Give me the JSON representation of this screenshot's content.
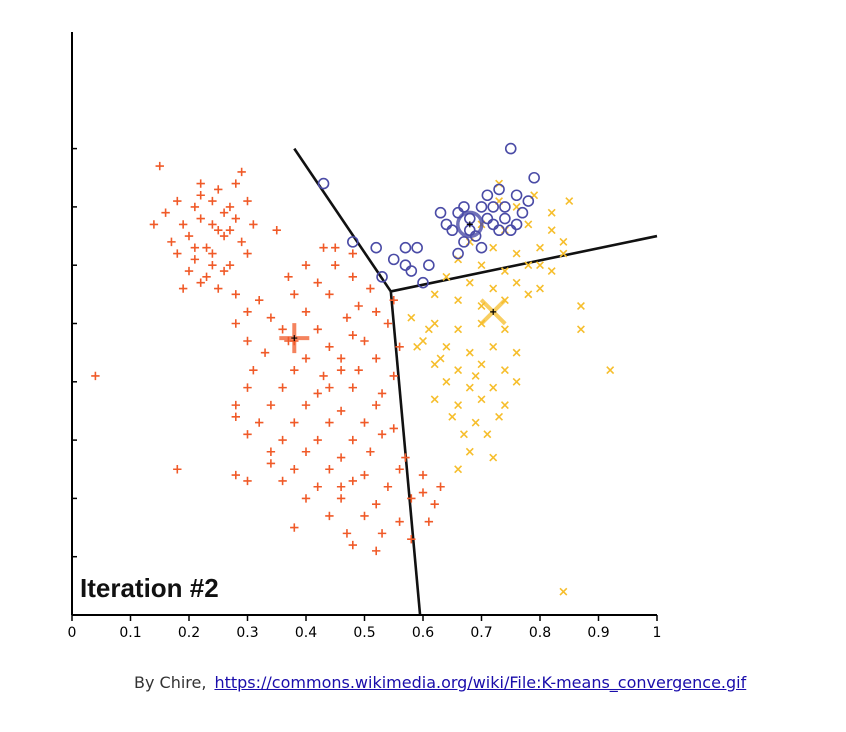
{
  "chart_data": {
    "type": "scatter",
    "title": "",
    "xlabel": "",
    "ylabel": "",
    "annotation": "Iteration #2",
    "xlim": [
      0,
      1
    ],
    "ylim": [
      0,
      1
    ],
    "xticks": [
      {
        "v": 0,
        "label": "0"
      },
      {
        "v": 0.1,
        "label": "0.1"
      },
      {
        "v": 0.2,
        "label": "0.2"
      },
      {
        "v": 0.3,
        "label": "0.3"
      },
      {
        "v": 0.4,
        "label": "0.4"
      },
      {
        "v": 0.5,
        "label": "0.5"
      },
      {
        "v": 0.6,
        "label": "0.6"
      },
      {
        "v": 0.7,
        "label": "0.7"
      },
      {
        "v": 0.8,
        "label": "0.8"
      },
      {
        "v": 0.9,
        "label": "0.9"
      },
      {
        "v": 1,
        "label": "1"
      }
    ],
    "yticks": [
      0.1,
      0.2,
      0.3,
      0.4,
      0.5,
      0.6,
      0.7,
      0.8
    ],
    "grid": false,
    "centroids": [
      {
        "cluster": "red",
        "x": 0.38,
        "y": 0.475
      },
      {
        "cluster": "yellow",
        "x": 0.72,
        "y": 0.52
      },
      {
        "cluster": "blue",
        "x": 0.68,
        "y": 0.67
      }
    ],
    "boundaries": [
      [
        [
          0.38,
          0.8
        ],
        [
          0.545,
          0.555
        ]
      ],
      [
        [
          0.545,
          0.555
        ],
        [
          1.0,
          0.65
        ]
      ],
      [
        [
          0.545,
          0.555
        ],
        [
          0.595,
          0.0
        ]
      ]
    ],
    "series": [
      {
        "marker": "plus",
        "color": "#f05a28",
        "points": [
          [
            0.15,
            0.77
          ],
          [
            0.22,
            0.74
          ],
          [
            0.25,
            0.73
          ],
          [
            0.28,
            0.74
          ],
          [
            0.29,
            0.76
          ],
          [
            0.18,
            0.71
          ],
          [
            0.21,
            0.7
          ],
          [
            0.24,
            0.71
          ],
          [
            0.27,
            0.7
          ],
          [
            0.3,
            0.71
          ],
          [
            0.14,
            0.67
          ],
          [
            0.19,
            0.67
          ],
          [
            0.22,
            0.68
          ],
          [
            0.25,
            0.66
          ],
          [
            0.28,
            0.68
          ],
          [
            0.31,
            0.67
          ],
          [
            0.17,
            0.64
          ],
          [
            0.2,
            0.65
          ],
          [
            0.23,
            0.63
          ],
          [
            0.26,
            0.65
          ],
          [
            0.29,
            0.64
          ],
          [
            0.18,
            0.62
          ],
          [
            0.21,
            0.61
          ],
          [
            0.24,
            0.62
          ],
          [
            0.27,
            0.6
          ],
          [
            0.3,
            0.62
          ],
          [
            0.2,
            0.59
          ],
          [
            0.23,
            0.58
          ],
          [
            0.26,
            0.59
          ],
          [
            0.19,
            0.56
          ],
          [
            0.22,
            0.57
          ],
          [
            0.25,
            0.56
          ],
          [
            0.28,
            0.55
          ],
          [
            0.22,
            0.72
          ],
          [
            0.26,
            0.69
          ],
          [
            0.16,
            0.69
          ],
          [
            0.24,
            0.67
          ],
          [
            0.21,
            0.63
          ],
          [
            0.27,
            0.66
          ],
          [
            0.24,
            0.6
          ],
          [
            0.35,
            0.66
          ],
          [
            0.43,
            0.63
          ],
          [
            0.45,
            0.63
          ],
          [
            0.48,
            0.62
          ],
          [
            0.4,
            0.6
          ],
          [
            0.45,
            0.6
          ],
          [
            0.37,
            0.58
          ],
          [
            0.42,
            0.57
          ],
          [
            0.48,
            0.58
          ],
          [
            0.51,
            0.56
          ],
          [
            0.32,
            0.54
          ],
          [
            0.38,
            0.55
          ],
          [
            0.44,
            0.55
          ],
          [
            0.49,
            0.53
          ],
          [
            0.55,
            0.54
          ],
          [
            0.3,
            0.52
          ],
          [
            0.34,
            0.51
          ],
          [
            0.4,
            0.52
          ],
          [
            0.47,
            0.51
          ],
          [
            0.52,
            0.52
          ],
          [
            0.28,
            0.5
          ],
          [
            0.36,
            0.49
          ],
          [
            0.42,
            0.49
          ],
          [
            0.48,
            0.48
          ],
          [
            0.54,
            0.5
          ],
          [
            0.3,
            0.47
          ],
          [
            0.37,
            0.47
          ],
          [
            0.44,
            0.46
          ],
          [
            0.5,
            0.47
          ],
          [
            0.56,
            0.46
          ],
          [
            0.33,
            0.45
          ],
          [
            0.4,
            0.44
          ],
          [
            0.46,
            0.44
          ],
          [
            0.52,
            0.44
          ],
          [
            0.31,
            0.42
          ],
          [
            0.38,
            0.42
          ],
          [
            0.43,
            0.41
          ],
          [
            0.49,
            0.42
          ],
          [
            0.55,
            0.41
          ],
          [
            0.3,
            0.39
          ],
          [
            0.36,
            0.39
          ],
          [
            0.42,
            0.38
          ],
          [
            0.48,
            0.39
          ],
          [
            0.53,
            0.38
          ],
          [
            0.28,
            0.36
          ],
          [
            0.34,
            0.36
          ],
          [
            0.4,
            0.36
          ],
          [
            0.46,
            0.35
          ],
          [
            0.52,
            0.36
          ],
          [
            0.32,
            0.33
          ],
          [
            0.38,
            0.33
          ],
          [
            0.44,
            0.33
          ],
          [
            0.5,
            0.33
          ],
          [
            0.55,
            0.32
          ],
          [
            0.3,
            0.31
          ],
          [
            0.36,
            0.3
          ],
          [
            0.42,
            0.3
          ],
          [
            0.48,
            0.3
          ],
          [
            0.53,
            0.31
          ],
          [
            0.34,
            0.28
          ],
          [
            0.4,
            0.28
          ],
          [
            0.46,
            0.27
          ],
          [
            0.51,
            0.28
          ],
          [
            0.57,
            0.27
          ],
          [
            0.38,
            0.25
          ],
          [
            0.44,
            0.25
          ],
          [
            0.5,
            0.24
          ],
          [
            0.56,
            0.25
          ],
          [
            0.3,
            0.23
          ],
          [
            0.36,
            0.23
          ],
          [
            0.42,
            0.22
          ],
          [
            0.48,
            0.23
          ],
          [
            0.54,
            0.22
          ],
          [
            0.6,
            0.24
          ],
          [
            0.4,
            0.2
          ],
          [
            0.46,
            0.2
          ],
          [
            0.52,
            0.19
          ],
          [
            0.58,
            0.2
          ],
          [
            0.62,
            0.19
          ],
          [
            0.44,
            0.17
          ],
          [
            0.5,
            0.17
          ],
          [
            0.56,
            0.16
          ],
          [
            0.61,
            0.16
          ],
          [
            0.38,
            0.15
          ],
          [
            0.47,
            0.14
          ],
          [
            0.53,
            0.14
          ],
          [
            0.58,
            0.13
          ],
          [
            0.48,
            0.12
          ],
          [
            0.52,
            0.11
          ],
          [
            0.04,
            0.41
          ],
          [
            0.18,
            0.25
          ],
          [
            0.28,
            0.24
          ],
          [
            0.6,
            0.21
          ],
          [
            0.63,
            0.22
          ],
          [
            0.34,
            0.26
          ],
          [
            0.46,
            0.22
          ],
          [
            0.28,
            0.34
          ],
          [
            0.44,
            0.39
          ],
          [
            0.38,
            0.47
          ],
          [
            0.46,
            0.42
          ]
        ]
      },
      {
        "marker": "cross",
        "color": "#f6be2c",
        "points": [
          [
            0.73,
            0.71
          ],
          [
            0.76,
            0.7
          ],
          [
            0.79,
            0.72
          ],
          [
            0.85,
            0.71
          ],
          [
            0.82,
            0.69
          ],
          [
            0.7,
            0.67
          ],
          [
            0.74,
            0.66
          ],
          [
            0.78,
            0.67
          ],
          [
            0.82,
            0.66
          ],
          [
            0.84,
            0.64
          ],
          [
            0.68,
            0.64
          ],
          [
            0.72,
            0.63
          ],
          [
            0.76,
            0.62
          ],
          [
            0.8,
            0.63
          ],
          [
            0.84,
            0.62
          ],
          [
            0.66,
            0.61
          ],
          [
            0.7,
            0.6
          ],
          [
            0.74,
            0.59
          ],
          [
            0.78,
            0.6
          ],
          [
            0.82,
            0.59
          ],
          [
            0.64,
            0.58
          ],
          [
            0.68,
            0.57
          ],
          [
            0.72,
            0.56
          ],
          [
            0.76,
            0.57
          ],
          [
            0.8,
            0.56
          ],
          [
            0.62,
            0.55
          ],
          [
            0.66,
            0.54
          ],
          [
            0.7,
            0.53
          ],
          [
            0.74,
            0.54
          ],
          [
            0.78,
            0.55
          ],
          [
            0.58,
            0.51
          ],
          [
            0.62,
            0.5
          ],
          [
            0.66,
            0.49
          ],
          [
            0.7,
            0.5
          ],
          [
            0.74,
            0.49
          ],
          [
            0.6,
            0.47
          ],
          [
            0.64,
            0.46
          ],
          [
            0.68,
            0.45
          ],
          [
            0.72,
            0.46
          ],
          [
            0.76,
            0.45
          ],
          [
            0.62,
            0.43
          ],
          [
            0.66,
            0.42
          ],
          [
            0.7,
            0.43
          ],
          [
            0.74,
            0.42
          ],
          [
            0.64,
            0.4
          ],
          [
            0.68,
            0.39
          ],
          [
            0.72,
            0.39
          ],
          [
            0.76,
            0.4
          ],
          [
            0.62,
            0.37
          ],
          [
            0.66,
            0.36
          ],
          [
            0.7,
            0.37
          ],
          [
            0.74,
            0.36
          ],
          [
            0.65,
            0.34
          ],
          [
            0.69,
            0.33
          ],
          [
            0.73,
            0.34
          ],
          [
            0.67,
            0.31
          ],
          [
            0.71,
            0.31
          ],
          [
            0.68,
            0.28
          ],
          [
            0.72,
            0.27
          ],
          [
            0.66,
            0.25
          ],
          [
            0.61,
            0.49
          ],
          [
            0.63,
            0.44
          ],
          [
            0.59,
            0.46
          ],
          [
            0.69,
            0.41
          ],
          [
            0.87,
            0.53
          ],
          [
            0.87,
            0.49
          ],
          [
            0.92,
            0.42
          ],
          [
            0.84,
            0.04
          ],
          [
            0.73,
            0.74
          ],
          [
            0.8,
            0.6
          ]
        ]
      },
      {
        "marker": "circle",
        "color": "#4a4ba6",
        "points": [
          [
            0.75,
            0.8
          ],
          [
            0.79,
            0.75
          ],
          [
            0.43,
            0.74
          ],
          [
            0.71,
            0.72
          ],
          [
            0.73,
            0.73
          ],
          [
            0.76,
            0.72
          ],
          [
            0.78,
            0.71
          ],
          [
            0.66,
            0.69
          ],
          [
            0.7,
            0.7
          ],
          [
            0.74,
            0.7
          ],
          [
            0.77,
            0.69
          ],
          [
            0.64,
            0.67
          ],
          [
            0.68,
            0.68
          ],
          [
            0.72,
            0.67
          ],
          [
            0.76,
            0.67
          ],
          [
            0.65,
            0.66
          ],
          [
            0.69,
            0.65
          ],
          [
            0.73,
            0.66
          ],
          [
            0.48,
            0.64
          ],
          [
            0.52,
            0.63
          ],
          [
            0.57,
            0.63
          ],
          [
            0.59,
            0.63
          ],
          [
            0.67,
            0.64
          ],
          [
            0.7,
            0.63
          ],
          [
            0.55,
            0.61
          ],
          [
            0.57,
            0.6
          ],
          [
            0.61,
            0.6
          ],
          [
            0.66,
            0.62
          ],
          [
            0.53,
            0.58
          ],
          [
            0.58,
            0.59
          ],
          [
            0.6,
            0.57
          ],
          [
            0.68,
            0.66
          ],
          [
            0.71,
            0.68
          ],
          [
            0.74,
            0.68
          ],
          [
            0.67,
            0.7
          ],
          [
            0.72,
            0.7
          ],
          [
            0.75,
            0.66
          ],
          [
            0.63,
            0.69
          ]
        ]
      }
    ]
  },
  "caption": {
    "text": "By Chire,",
    "link": "https://commons.wikimedia.org/wiki/File:K-means_convergence.gif"
  }
}
